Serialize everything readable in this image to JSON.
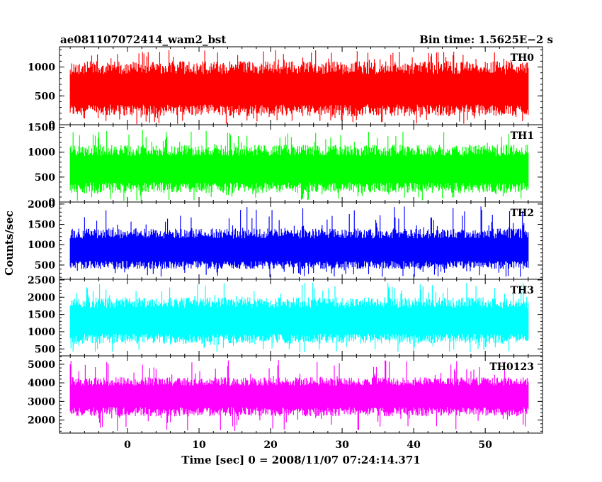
{
  "header": {
    "title": "ae081107072414_wam2_bst",
    "bin_time": "Bin time: 1.5625E−2 s"
  },
  "axes": {
    "ylabel": "Counts/sec",
    "xlabel": "Time [sec] 0 = 2008/11/07 07:24:14.371"
  },
  "chart_data": {
    "type": "line",
    "title": "ae081107072414_wam2_bst",
    "xlabel": "Time [sec] 0 = 2008/11/07 07:24:14.371",
    "ylabel": "Counts/sec",
    "xlim": [
      -9.5,
      58
    ],
    "x_start": -8,
    "x_end": 56,
    "x_ticks": [
      0,
      10,
      20,
      30,
      40,
      50
    ],
    "x_tick_labels": [
      "0",
      "10",
      "20",
      "30",
      "40",
      "50"
    ],
    "panels": [
      {
        "name": "TH0",
        "color": "#ff0000",
        "ylim": [
          0,
          1350
        ],
        "yticks": [
          0,
          500,
          1000
        ],
        "ytick_labels": [
          "0",
          "500",
          "1000"
        ],
        "mean": 600,
        "low": 150,
        "high": 1100,
        "spike_max": 1300,
        "dip_min": 10
      },
      {
        "name": "TH1",
        "color": "#00ff00",
        "ylim": [
          0,
          1550
        ],
        "yticks": [
          0,
          500,
          1000,
          1500
        ],
        "ytick_labels": [
          "0",
          "500",
          "1000",
          "1500"
        ],
        "mean": 650,
        "low": 180,
        "high": 1150,
        "spike_max": 1450,
        "dip_min": 20
      },
      {
        "name": "TH2",
        "color": "#0000ff",
        "ylim": [
          150,
          2050
        ],
        "yticks": [
          500,
          1000,
          1500,
          2000
        ],
        "ytick_labels": [
          "500",
          "1000",
          "1500",
          "2000"
        ],
        "mean": 850,
        "low": 400,
        "high": 1400,
        "spike_max": 1950,
        "dip_min": 200
      },
      {
        "name": "TH3",
        "color": "#00ffff",
        "ylim": [
          300,
          2520
        ],
        "yticks": [
          500,
          1000,
          1500,
          2000,
          2500
        ],
        "ytick_labels": [
          "500",
          "1000",
          "1500",
          "2000",
          "2500"
        ],
        "mean": 1300,
        "low": 650,
        "high": 2000,
        "spike_max": 2450,
        "dip_min": 400
      },
      {
        "name": "TH0123",
        "color": "#ff00ff",
        "ylim": [
          1300,
          5450
        ],
        "yticks": [
          2000,
          3000,
          4000,
          5000
        ],
        "ytick_labels": [
          "2000",
          "3000",
          "4000",
          "5000"
        ],
        "mean": 3300,
        "low": 2200,
        "high": 4300,
        "spike_max": 5300,
        "dip_min": 1400
      }
    ]
  }
}
